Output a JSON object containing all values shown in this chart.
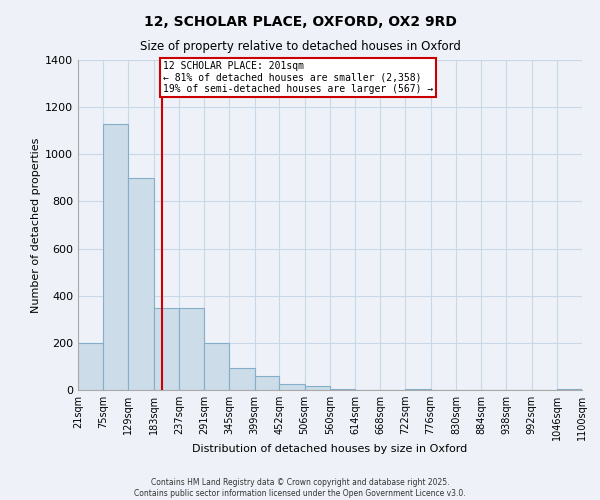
{
  "title": "12, SCHOLAR PLACE, OXFORD, OX2 9RD",
  "subtitle": "Size of property relative to detached houses in Oxford",
  "xlabel": "Distribution of detached houses by size in Oxford",
  "ylabel": "Number of detached properties",
  "bin_edges": [
    21,
    75,
    129,
    183,
    237,
    291,
    345,
    399,
    452,
    506,
    560,
    614,
    668,
    722,
    776,
    830,
    884,
    938,
    992,
    1046,
    1100
  ],
  "bin_labels": [
    "21sqm",
    "75sqm",
    "129sqm",
    "183sqm",
    "237sqm",
    "291sqm",
    "345sqm",
    "399sqm",
    "452sqm",
    "506sqm",
    "560sqm",
    "614sqm",
    "668sqm",
    "722sqm",
    "776sqm",
    "830sqm",
    "884sqm",
    "938sqm",
    "992sqm",
    "1046sqm",
    "1100sqm"
  ],
  "counts": [
    200,
    1130,
    900,
    350,
    350,
    200,
    95,
    60,
    25,
    15,
    5,
    0,
    0,
    5,
    0,
    0,
    0,
    0,
    0,
    5
  ],
  "bar_color": "#ccdce8",
  "bar_edge_color": "#85aec8",
  "property_line_x": 201,
  "annotation_text": "12 SCHOLAR PLACE: 201sqm\n← 81% of detached houses are smaller (2,358)\n19% of semi-detached houses are larger (567) →",
  "annotation_box_facecolor": "#ffffff",
  "annotation_box_edgecolor": "#cc0000",
  "vline_color": "#cc0000",
  "ylim": [
    0,
    1400
  ],
  "yticks": [
    0,
    200,
    400,
    600,
    800,
    1000,
    1200,
    1400
  ],
  "grid_color": "#c8d8e8",
  "bg_color": "#eef2f8",
  "footer_line1": "Contains HM Land Registry data © Crown copyright and database right 2025.",
  "footer_line2": "Contains public sector information licensed under the Open Government Licence v3.0."
}
